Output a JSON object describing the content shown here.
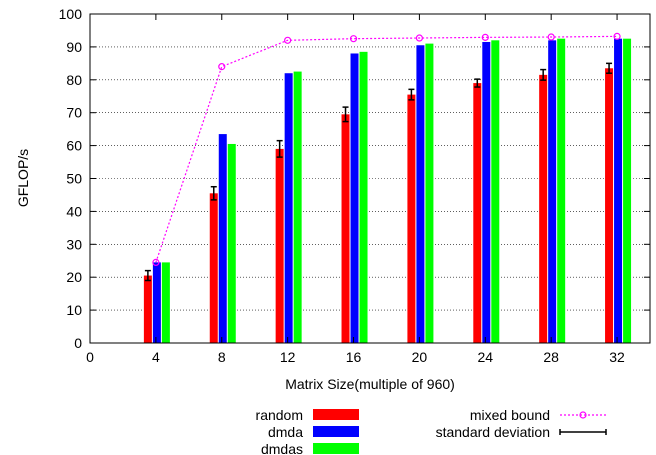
{
  "chart_data": {
    "type": "bar",
    "title": "",
    "xlabel": "Matrix Size(multiple of 960)",
    "ylabel": "GFLOP/s",
    "xlim": [
      0,
      34
    ],
    "ylim": [
      0,
      100
    ],
    "xticks": [
      0,
      4,
      8,
      12,
      16,
      20,
      24,
      28,
      32
    ],
    "yticks": [
      0,
      10,
      20,
      30,
      40,
      50,
      60,
      70,
      80,
      90,
      100
    ],
    "categories": [
      4,
      8,
      12,
      16,
      20,
      24,
      28,
      32
    ],
    "series": [
      {
        "name": "random",
        "color": "#ff0000",
        "values": [
          20.5,
          45.5,
          59,
          69.5,
          75.5,
          79,
          81.5,
          83.5
        ],
        "std": [
          1.5,
          2,
          2.5,
          2.2,
          1.6,
          1.2,
          1.6,
          1.5
        ]
      },
      {
        "name": "dmda",
        "color": "#0000ff",
        "values": [
          24.5,
          63.5,
          82,
          88,
          90.5,
          91.5,
          92,
          92.5
        ]
      },
      {
        "name": "dmdas",
        "color": "#00ff00",
        "values": [
          24.5,
          60.5,
          82.5,
          88.5,
          91,
          92,
          92.5,
          92.5
        ]
      }
    ],
    "line_series": {
      "name": "mixed bound",
      "color": "#ff00ff",
      "x": [
        4,
        8,
        12,
        16,
        20,
        24,
        28,
        32
      ],
      "values": [
        24.5,
        84,
        92,
        92.5,
        92.7,
        92.9,
        93,
        93.2
      ]
    },
    "errorbar_legend": "standard deviation",
    "grid": true,
    "legend_position": "bottom"
  }
}
